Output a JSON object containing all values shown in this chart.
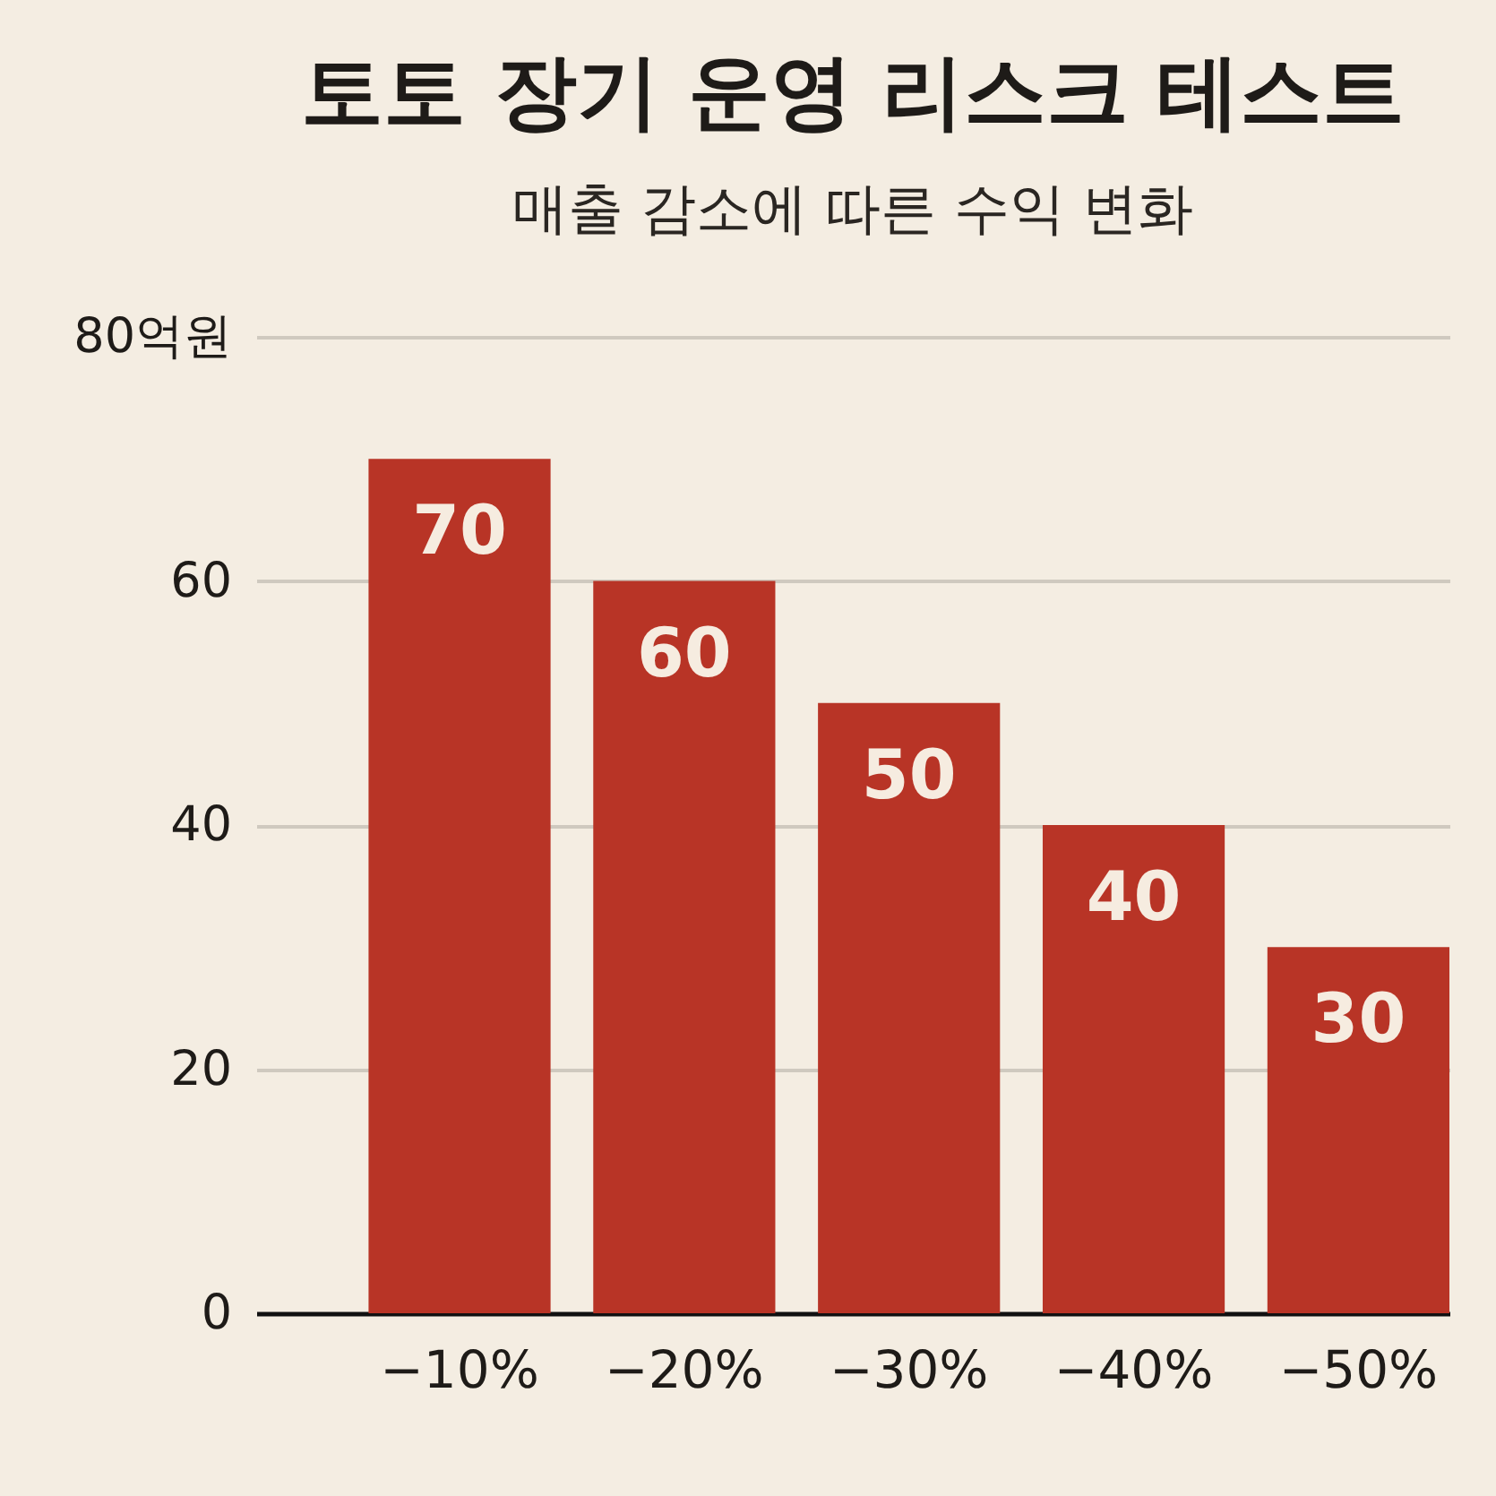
{
  "chart_data": {
    "type": "bar",
    "title": "토토 장기 운영 리스크 테스트",
    "subtitle": "매출 감소에 따른 수익 변화",
    "categories": [
      "−10%",
      "−20%",
      "−30%",
      "−40%",
      "−50%"
    ],
    "values": [
      70,
      60,
      50,
      40,
      30
    ],
    "color": "#b83426",
    "ylim": [
      0,
      80
    ],
    "yticks": [
      0,
      20,
      40,
      60,
      {
        "value": 80,
        "label": "80억원"
      }
    ],
    "grid": "y",
    "data_labels": true
  }
}
